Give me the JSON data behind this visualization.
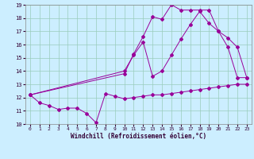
{
  "xlabel": "Windchill (Refroidissement éolien,°C)",
  "bg_color": "#cceeff",
  "line_color": "#990099",
  "xlim": [
    -0.5,
    23.5
  ],
  "ylim": [
    10,
    19
  ],
  "yticks": [
    10,
    11,
    12,
    13,
    14,
    15,
    16,
    17,
    18,
    19
  ],
  "xticks": [
    0,
    1,
    2,
    3,
    4,
    5,
    6,
    7,
    8,
    9,
    10,
    11,
    12,
    13,
    14,
    15,
    16,
    17,
    18,
    19,
    20,
    21,
    22,
    23
  ],
  "line1_x": [
    0,
    1,
    2,
    3,
    4,
    5,
    6,
    7,
    8,
    9,
    10,
    11,
    12,
    13,
    14,
    15,
    16,
    17,
    18,
    19,
    20,
    21,
    22,
    23
  ],
  "line1_y": [
    12.2,
    11.6,
    11.4,
    11.1,
    11.2,
    11.2,
    10.8,
    10.1,
    12.3,
    12.1,
    11.9,
    12.0,
    12.1,
    12.2,
    12.2,
    12.3,
    12.4,
    12.5,
    12.6,
    12.7,
    12.8,
    12.9,
    13.0,
    13.0
  ],
  "line2_x": [
    0,
    10,
    11,
    12,
    13,
    14,
    15,
    16,
    17,
    18,
    19,
    20,
    21,
    22,
    23
  ],
  "line2_y": [
    12.2,
    13.8,
    15.3,
    16.6,
    18.1,
    17.9,
    19.0,
    18.6,
    18.6,
    18.6,
    18.6,
    17.0,
    15.8,
    13.5,
    13.5
  ],
  "line3_x": [
    0,
    10,
    11,
    12,
    13,
    14,
    15,
    16,
    17,
    18,
    19,
    20,
    21,
    22,
    23
  ],
  "line3_y": [
    12.2,
    14.0,
    15.2,
    16.2,
    13.6,
    14.0,
    15.2,
    16.4,
    17.5,
    18.5,
    17.6,
    17.0,
    16.5,
    15.8,
    13.5
  ]
}
